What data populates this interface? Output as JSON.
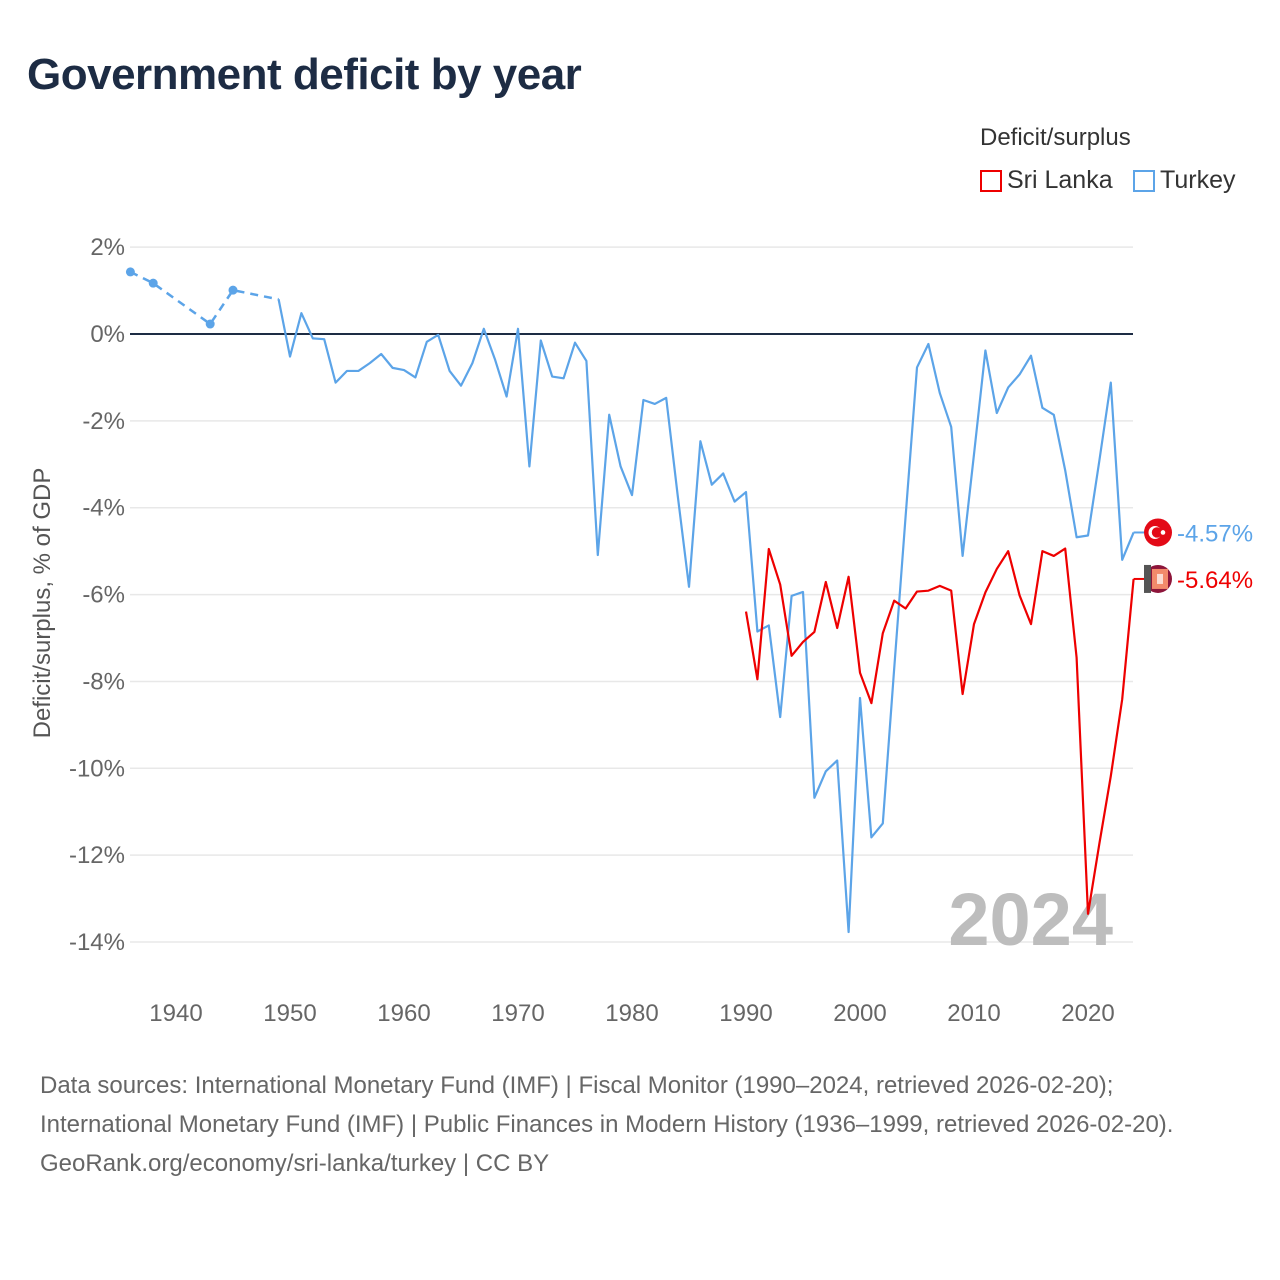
{
  "title": "Government deficit by year",
  "legend": {
    "title": "Deficit/surplus",
    "items": [
      {
        "label": "Sri Lanka",
        "color": "#ee0000"
      },
      {
        "label": "Turkey",
        "color": "#5ca4e8"
      }
    ]
  },
  "source": {
    "line1": "Data sources: International Monetary Fund (IMF) | Fiscal Monitor (1990–2024, retrieved 2026-02-20); International Monetary Fund (IMF) | Public Finances in Modern History (1936–1999, retrieved 2026-02-20).",
    "line2": "GeoRank.org/economy/sri-lanka/turkey | CC BY"
  },
  "chart_data": {
    "type": "line",
    "title": "Government deficit by year",
    "ylabel": "Deficit/surplus, % of GDP",
    "xlabel": "",
    "xlim": [
      1936,
      2024
    ],
    "ylim": [
      -14,
      2
    ],
    "yticks": [
      2,
      0,
      -2,
      -4,
      -6,
      -8,
      -10,
      -12,
      -14
    ],
    "ytick_labels": [
      "2%",
      "0%",
      "-2%",
      "-4%",
      "-6%",
      "-8%",
      "-10%",
      "-12%",
      "-14%"
    ],
    "xticks": [
      1940,
      1950,
      1960,
      1970,
      1980,
      1990,
      2000,
      2010,
      2020
    ],
    "xtick_labels": [
      "1940",
      "1950",
      "1960",
      "1970",
      "1980",
      "1990",
      "2000",
      "2010",
      "2020"
    ],
    "year_watermark": "2024",
    "series": [
      {
        "name": "Turkey",
        "color": "#5ca4e8",
        "end_label": "-4.57%",
        "flag": "turkey-flag",
        "dashed_until": 1949,
        "markers": [
          1936,
          1938,
          1943,
          1945
        ],
        "points": [
          [
            1936,
            1.43
          ],
          [
            1938,
            1.17
          ],
          [
            1943,
            0.23
          ],
          [
            1945,
            1.01
          ],
          [
            1948,
            0.85
          ],
          [
            1949,
            0.8
          ],
          [
            1950,
            -0.52
          ],
          [
            1951,
            0.48
          ],
          [
            1952,
            -0.1
          ],
          [
            1953,
            -0.12
          ],
          [
            1954,
            -1.12
          ],
          [
            1955,
            -0.85
          ],
          [
            1956,
            -0.85
          ],
          [
            1957,
            -0.67
          ],
          [
            1958,
            -0.46
          ],
          [
            1959,
            -0.78
          ],
          [
            1960,
            -0.83
          ],
          [
            1961,
            -1.0
          ],
          [
            1962,
            -0.18
          ],
          [
            1963,
            -0.02
          ],
          [
            1964,
            -0.85
          ],
          [
            1965,
            -1.19
          ],
          [
            1966,
            -0.67
          ],
          [
            1967,
            0.12
          ],
          [
            1968,
            -0.6
          ],
          [
            1969,
            -1.44
          ],
          [
            1970,
            0.12
          ],
          [
            1971,
            -3.05
          ],
          [
            1972,
            -0.15
          ],
          [
            1973,
            -0.98
          ],
          [
            1974,
            -1.02
          ],
          [
            1975,
            -0.2
          ],
          [
            1976,
            -0.62
          ],
          [
            1977,
            -5.09
          ],
          [
            1978,
            -1.86
          ],
          [
            1979,
            -3.05
          ],
          [
            1980,
            -3.71
          ],
          [
            1981,
            -1.52
          ],
          [
            1982,
            -1.61
          ],
          [
            1983,
            -1.47
          ],
          [
            1984,
            -3.7
          ],
          [
            1985,
            -5.82
          ],
          [
            1986,
            -2.47
          ],
          [
            1987,
            -3.47
          ],
          [
            1988,
            -3.21
          ],
          [
            1989,
            -3.86
          ],
          [
            1990,
            -3.64
          ],
          [
            1991,
            -6.85
          ],
          [
            1992,
            -6.71
          ],
          [
            1993,
            -8.82
          ],
          [
            1994,
            -6.03
          ],
          [
            1995,
            -5.94
          ],
          [
            1996,
            -10.68
          ],
          [
            1997,
            -10.07
          ],
          [
            1998,
            -9.82
          ],
          [
            1999,
            -13.77
          ],
          [
            2000,
            -8.38
          ],
          [
            2001,
            -11.59
          ],
          [
            2002,
            -11.27
          ],
          [
            2003,
            -7.7
          ],
          [
            2004,
            -4.2
          ],
          [
            2005,
            -0.77
          ],
          [
            2006,
            -0.23
          ],
          [
            2007,
            -1.36
          ],
          [
            2008,
            -2.14
          ],
          [
            2009,
            -5.11
          ],
          [
            2010,
            -2.77
          ],
          [
            2011,
            -0.38
          ],
          [
            2012,
            -1.82
          ],
          [
            2013,
            -1.23
          ],
          [
            2014,
            -0.93
          ],
          [
            2015,
            -0.5
          ],
          [
            2016,
            -1.7
          ],
          [
            2017,
            -1.86
          ],
          [
            2018,
            -3.14
          ],
          [
            2019,
            -4.68
          ],
          [
            2020,
            -4.64
          ],
          [
            2021,
            -2.91
          ],
          [
            2022,
            -1.12
          ],
          [
            2023,
            -5.2
          ],
          [
            2024,
            -4.57
          ]
        ]
      },
      {
        "name": "Sri Lanka",
        "color": "#ee0000",
        "end_label": "-5.64%",
        "flag": "sri-lanka-flag",
        "points": [
          [
            1990,
            -6.39
          ],
          [
            1991,
            -7.95
          ],
          [
            1992,
            -4.95
          ],
          [
            1993,
            -5.77
          ],
          [
            1994,
            -7.41
          ],
          [
            1995,
            -7.09
          ],
          [
            1996,
            -6.86
          ],
          [
            1997,
            -5.71
          ],
          [
            1998,
            -6.77
          ],
          [
            1999,
            -5.59
          ],
          [
            2000,
            -7.8
          ],
          [
            2001,
            -8.5
          ],
          [
            2002,
            -6.89
          ],
          [
            2003,
            -6.14
          ],
          [
            2004,
            -6.32
          ],
          [
            2005,
            -5.93
          ],
          [
            2006,
            -5.91
          ],
          [
            2007,
            -5.8
          ],
          [
            2008,
            -5.91
          ],
          [
            2009,
            -8.29
          ],
          [
            2010,
            -6.68
          ],
          [
            2011,
            -5.95
          ],
          [
            2012,
            -5.41
          ],
          [
            2013,
            -5.0
          ],
          [
            2014,
            -6.02
          ],
          [
            2015,
            -6.68
          ],
          [
            2016,
            -5.0
          ],
          [
            2017,
            -5.11
          ],
          [
            2018,
            -4.94
          ],
          [
            2019,
            -7.45
          ],
          [
            2020,
            -13.35
          ],
          [
            2021,
            -11.73
          ],
          [
            2022,
            -10.18
          ],
          [
            2023,
            -8.41
          ],
          [
            2024,
            -5.64
          ]
        ]
      }
    ]
  }
}
